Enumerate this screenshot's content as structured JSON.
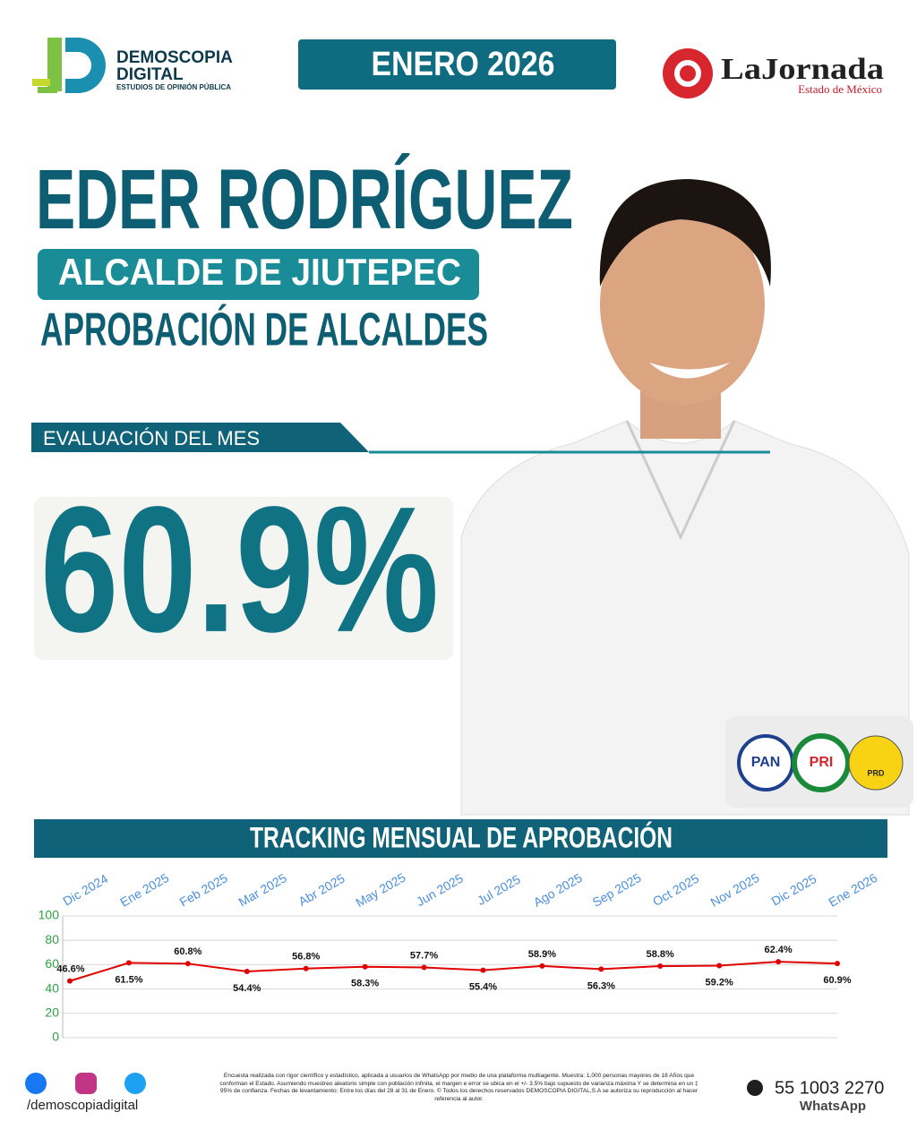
{
  "brand": {
    "name": "DEMOSCOPIA",
    "name2": "DIGITAL",
    "tagline": "ESTUDIOS DE OPINIÓN PÚBLICA"
  },
  "period": "ENERO 2026",
  "partner": {
    "name": "LaJornada",
    "region": "Estado de México"
  },
  "person": "EDER RODRÍGUEZ",
  "role": "ALCALDE DE JIUTEPEC",
  "study": "APROBACIÓN DE ALCALDES",
  "evaluation": {
    "label": "EVALUACIÓN DEL MES",
    "value": "60.9%"
  },
  "parties": [
    "PAN",
    "PRI",
    "PRD"
  ],
  "chart_data": {
    "type": "line",
    "title": "TRACKING MENSUAL DE APROBACIÓN",
    "categories": [
      "Dic 2024",
      "Ene 2025",
      "Feb 2025",
      "Mar 2025",
      "Abr 2025",
      "May 2025",
      "Jun 2025",
      "Jul 2025",
      "Ago 2025",
      "Sep 2025",
      "Oct 2025",
      "Nov 2025",
      "Dic 2025",
      "Ene 2026"
    ],
    "values": [
      46.6,
      61.5,
      60.8,
      54.4,
      56.8,
      58.3,
      57.7,
      55.4,
      58.9,
      56.3,
      58.8,
      59.2,
      62.4,
      60.9
    ],
    "value_labels": [
      "46.6%",
      "61.5%",
      "60.8%",
      "54.4%",
      "56.8%",
      "58.3%",
      "57.7%",
      "55.4%",
      "58.9%",
      "56.3%",
      "58.8%",
      "59.2%",
      "62.4%",
      "60.9%"
    ],
    "color": "#e00000",
    "ylim": [
      0,
      100
    ],
    "yticks": [
      0,
      20,
      40,
      60,
      80,
      100
    ],
    "grid": true
  },
  "footer": {
    "handle": "/demoscopiadigital",
    "disclaimer": "Encuesta realizada con rigor científico y estadístico, aplicada a usuarios de WhatsApp por medio de una plataforma multiagente. Muestra: 1,000 personas mayores de 18 Años que conforman el Estado. Asumiendo muestreo aleatorio simple con población infinita, el margen e error se ubica en el +/- 3.5% bajo supuesto de varianza máxima Y se determina en un ‡ 95% de confianza. Fechas de levantamiento: Entre los días del 28 al 31 de Enero. © Todos los derechos reservados DEMOSCOPIA DIGITAL,S.A se autoriza su reproducción al hacer referencia al autor.",
    "phone": "55 1003 2270",
    "channel": "WhatsApp"
  }
}
